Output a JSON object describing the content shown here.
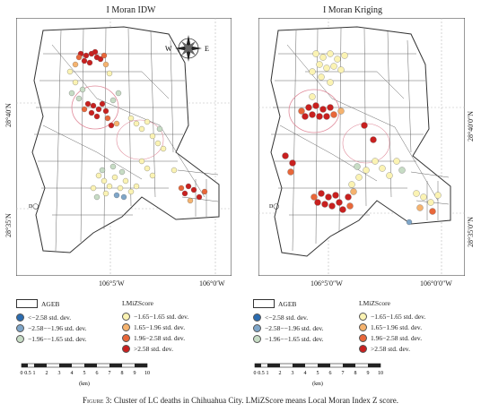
{
  "panels": [
    {
      "title": "I Moran IDW",
      "lat_labels": [
        "28°40′N",
        "28°35′N"
      ],
      "lon_labels": [
        "106°5′W",
        "106°0′W"
      ]
    },
    {
      "title": "I Moran Kriging",
      "lat_labels": [
        "28°40′0″N",
        "28°35′0″N"
      ],
      "lon_labels": [
        "106°5′0″W",
        "106°0′0″W"
      ]
    }
  ],
  "legend": {
    "ageb": "AGEB",
    "lmiz_title": "LMiZScore",
    "left_items": [
      "<−2.58 std. dev.",
      "−2.58−−1.96 std. dev.",
      "−1.96−−1.65 std. dev."
    ],
    "right_items": [
      "−1.65−1.65 std. dev.",
      "1.65−1.96 std. dev.",
      "1.96−2.58 std. dev.",
      ">2.58 std. dev."
    ],
    "colors": {
      "lt_258": "#2b6cb0",
      "neg_258_196": "#7fa6c9",
      "neg_196_165": "#c7dcc5",
      "neutral": "#fbf3b3",
      "pos_165_196": "#f5b36f",
      "pos_196_258": "#e8673a",
      "gt_258": "#c8201f"
    }
  },
  "scalebar": {
    "ticks": [
      "0",
      "0.5",
      "1",
      "2",
      "3",
      "4",
      "5",
      "6",
      "7",
      "8",
      "9",
      "10"
    ],
    "unit": "(km)"
  },
  "compass": {
    "w": "W",
    "e": "E"
  },
  "caption": {
    "prefix": "Figure 3:",
    "text": " Cluster of LC deaths in Chihuahua City. LMiZScore means Local Moran Index Z score."
  }
}
